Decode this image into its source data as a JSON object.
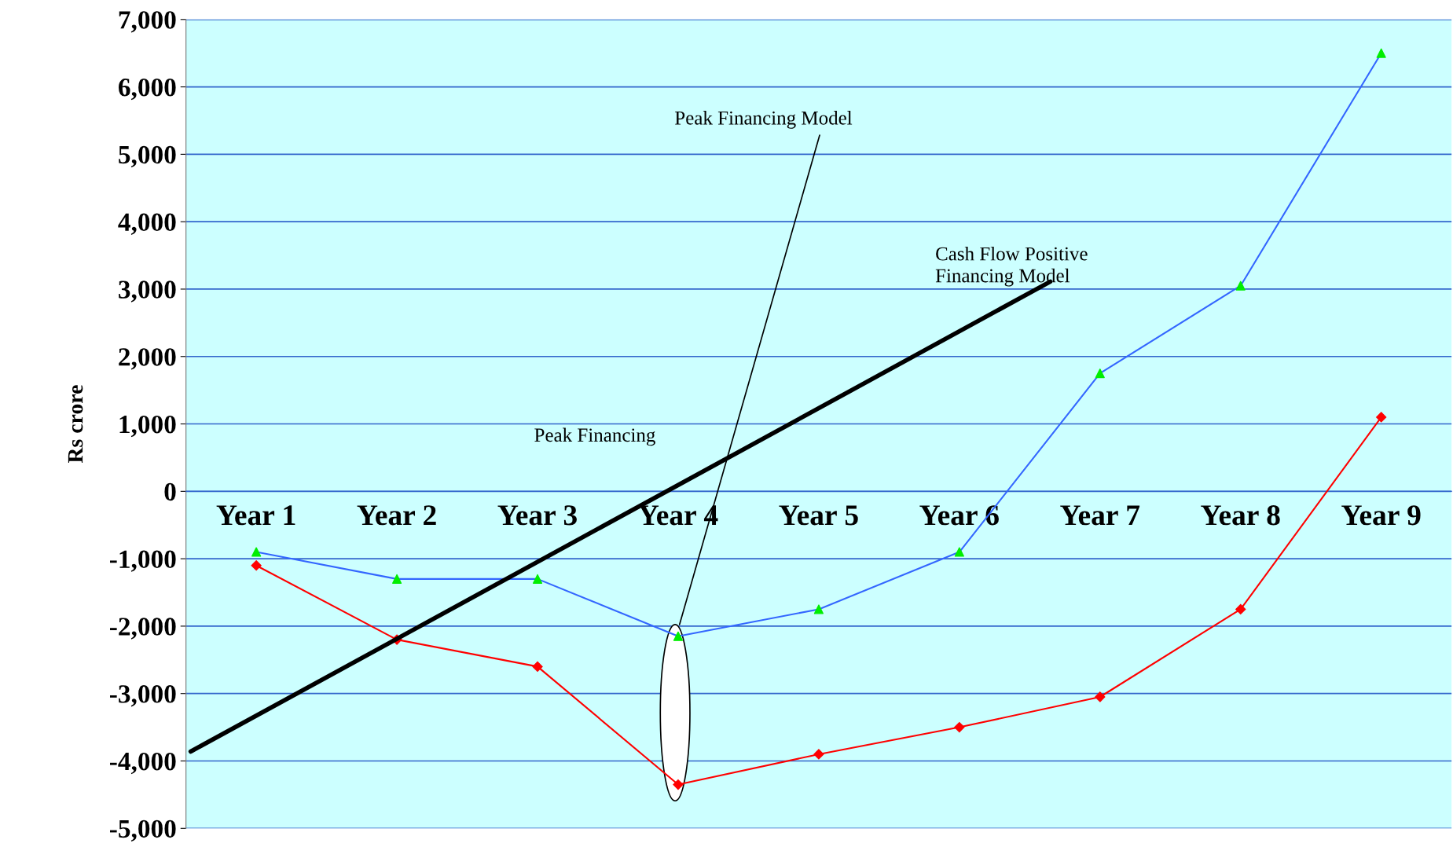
{
  "chart_data": {
    "type": "line",
    "ylabel": "Rs crore",
    "categories": [
      "Year 1",
      "Year 2",
      "Year 3",
      "Year 4",
      "Year 5",
      "Year 6",
      "Year 7",
      "Year 8",
      "Year 9"
    ],
    "series": [
      {
        "color": "#3366ff",
        "marker": "none",
        "values": [
          -900,
          -1300,
          -1300,
          -2150,
          -1750,
          -900,
          1750,
          3050,
          6500
        ]
      },
      {
        "type": "scatter",
        "color": "#00ee00",
        "marker": "triangle",
        "values": [
          -900,
          -1300,
          -1300,
          -2150,
          -1750,
          -900,
          1750,
          3050,
          6500
        ]
      },
      {
        "color": "#ff0000",
        "marker": "diamond",
        "values": [
          -1100,
          -2200,
          -2600,
          -4350,
          -3900,
          -3500,
          -3050,
          -1750,
          1100
        ]
      }
    ],
    "ylim": [
      -5000,
      7000
    ],
    "yticks": [
      {
        "value": -5000,
        "label": "-5,000"
      },
      {
        "value": -4000,
        "label": "-4,000"
      },
      {
        "value": -3000,
        "label": "-3,000"
      },
      {
        "value": -2000,
        "label": "-2,000"
      },
      {
        "value": -1000,
        "label": "-1,000"
      },
      {
        "value": 0,
        "label": "0"
      },
      {
        "value": 1000,
        "label": "1,000"
      },
      {
        "value": 2000,
        "label": "2,000"
      },
      {
        "value": 3000,
        "label": "3,000"
      },
      {
        "value": 4000,
        "label": "4,000"
      },
      {
        "value": 5000,
        "label": "5,000"
      },
      {
        "value": 6000,
        "label": "6,000"
      },
      {
        "value": 7000,
        "label": "7,000"
      }
    ],
    "grid": "y",
    "legend": false,
    "annotations": [
      "Peak Financing Model",
      "Cash Flow Positive\nFinancing Model",
      "Peak Financing"
    ]
  }
}
